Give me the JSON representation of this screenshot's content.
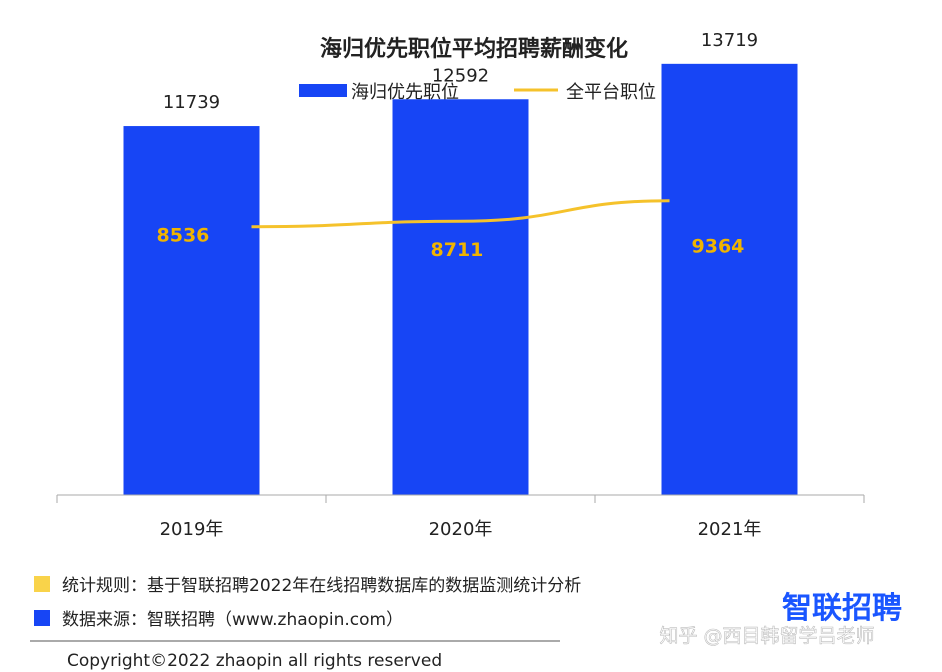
{
  "chart_data": {
    "type": "bar",
    "title": "海归优先职位平均招聘薪酬变化",
    "categories": [
      "2019年",
      "2020年",
      "2021年"
    ],
    "series": [
      {
        "name": "海归优先职位",
        "type": "bar",
        "color": "#1745f5",
        "values": [
          11739,
          12592,
          13719
        ]
      },
      {
        "name": "全平台职位",
        "type": "line",
        "color": "#f5c22b",
        "values": [
          8536,
          8711,
          9364
        ]
      }
    ],
    "ylim": [
      0,
      14000
    ],
    "grid": false,
    "legend": "top-center"
  },
  "notes": [
    {
      "text": "统计规则：基于智联招聘2022年在线招聘数据库的数据监测统计分析",
      "color": "#f9d34a"
    },
    {
      "text": "数据来源：智联招聘（www.zhaopin.com）",
      "color": "#1745f5"
    }
  ],
  "brand": "智联招聘",
  "watermark": "知乎 @西目韩留学吕老师",
  "copyright": "Copyright©2022 zhaopin all rights reserved"
}
